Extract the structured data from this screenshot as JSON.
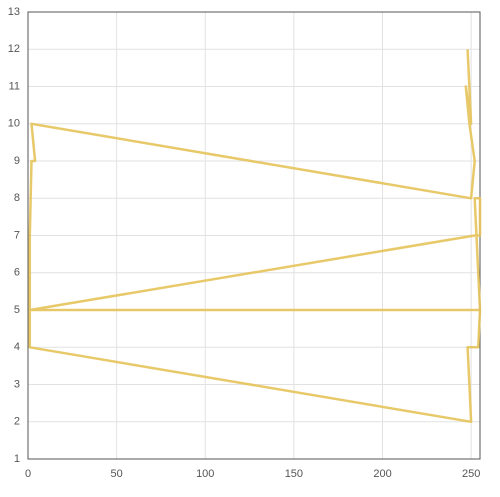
{
  "chart_data": {
    "type": "line",
    "x": [
      248,
      250,
      247,
      249,
      252,
      250,
      2,
      4,
      2,
      1,
      1,
      252,
      255,
      255,
      252,
      255,
      1,
      255,
      254,
      248,
      249,
      250,
      1,
      1
    ],
    "values": [
      12,
      10,
      11,
      10,
      9,
      8,
      10,
      9,
      9,
      7,
      5,
      7,
      7,
      8,
      8,
      5,
      5,
      5,
      4,
      4,
      3,
      2,
      4,
      5
    ],
    "color": "#e6c35a",
    "xlim": [
      0,
      255
    ],
    "xticks": [
      0,
      50,
      100,
      150,
      200,
      250
    ],
    "ylim": [
      1,
      13
    ],
    "yticks": [
      1,
      2,
      3,
      4,
      5,
      6,
      7,
      8,
      9,
      10,
      11,
      12,
      13
    ],
    "grid": true
  }
}
